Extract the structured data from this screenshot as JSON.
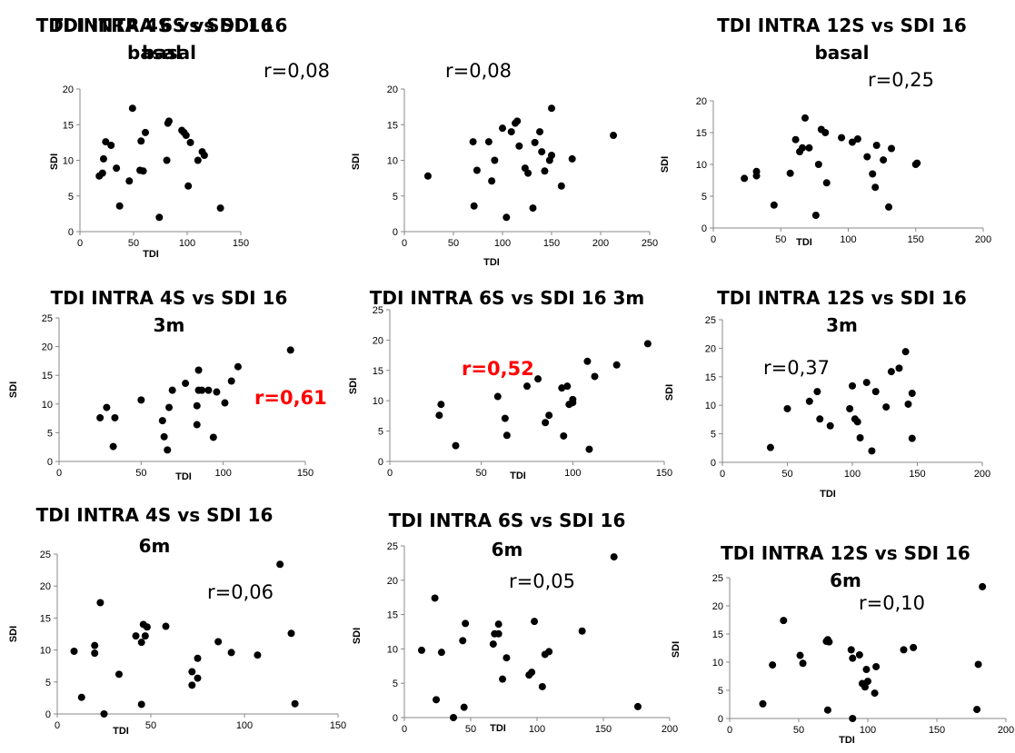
{
  "chart_data": [
    {
      "type": "scatter",
      "title_line1": "TDI INTRA 4S vs SDI 16",
      "title_line2": "basal",
      "xlabel": "TDI",
      "ylabel": "SDI",
      "annotation": "r=0,08",
      "annotation_highlight": false,
      "xlim": [
        0,
        150
      ],
      "ylim": [
        0,
        20
      ],
      "xticks": [
        "0",
        "50",
        "100",
        "150"
      ],
      "yticks": [
        "0",
        "5",
        "10",
        "15",
        "20"
      ],
      "x": [
        18,
        21,
        22,
        24,
        29,
        34,
        37,
        46,
        49,
        56,
        57,
        59,
        61,
        74,
        81,
        82,
        83,
        95,
        97,
        99,
        101,
        103,
        110,
        114,
        116,
        131
      ],
      "y": [
        7.8,
        8.2,
        10.2,
        12.6,
        12.1,
        8.9,
        3.6,
        7.1,
        17.3,
        8.6,
        12.7,
        8.5,
        13.9,
        2.0,
        10.0,
        15.2,
        15.5,
        14.2,
        13.9,
        13.5,
        6.4,
        12.5,
        10.0,
        11.2,
        10.7,
        3.3
      ]
    },
    {
      "type": "scatter",
      "title_line1": "TDI INTRA 6S vs SDI 16",
      "title_line2": "basal",
      "xlabel": "TDI",
      "ylabel": "SDI",
      "annotation": "r=0,08",
      "annotation_highlight": false,
      "xlim": [
        0,
        250
      ],
      "ylim": [
        0,
        20
      ],
      "xticks": [
        "0",
        "50",
        "100",
        "150",
        "200",
        "250"
      ],
      "yticks": [
        "0",
        "5",
        "10",
        "15",
        "20"
      ],
      "x": [
        24,
        70,
        71,
        74,
        86,
        89,
        92,
        100,
        104,
        109,
        113,
        115,
        117,
        123,
        126,
        131,
        133,
        138,
        140,
        143,
        148,
        150,
        150,
        160,
        171,
        213
      ],
      "y": [
        7.8,
        12.6,
        3.6,
        8.6,
        12.6,
        7.1,
        10.0,
        14.5,
        2.0,
        14.0,
        15.2,
        15.5,
        12.0,
        8.9,
        8.2,
        3.3,
        12.5,
        14.0,
        11.2,
        8.5,
        10.0,
        10.7,
        17.3,
        6.4,
        10.2,
        13.5
      ]
    },
    {
      "type": "scatter",
      "title_line1": "TDI INTRA 12S vs SDI 16",
      "title_line2": "basal",
      "xlabel": "TDI",
      "ylabel": "SDI",
      "annotation": "r=0,25",
      "annotation_highlight": false,
      "xlim": [
        0,
        200
      ],
      "ylim": [
        0,
        20
      ],
      "xticks": [
        "0",
        "50",
        "100",
        "150",
        "200"
      ],
      "yticks": [
        "0",
        "5",
        "10",
        "15",
        "20"
      ],
      "x": [
        23,
        32,
        32,
        45,
        57,
        61,
        64,
        66,
        68,
        71,
        76,
        78,
        80,
        83,
        84,
        95,
        103,
        107,
        114,
        118,
        120,
        121,
        126,
        130,
        132,
        150,
        151
      ],
      "y": [
        7.8,
        8.2,
        8.9,
        3.6,
        8.6,
        13.9,
        12.0,
        12.6,
        17.3,
        12.6,
        2.0,
        10.0,
        15.5,
        15.0,
        7.1,
        14.2,
        13.5,
        14.0,
        11.2,
        8.5,
        6.4,
        13.0,
        10.7,
        3.3,
        12.5,
        10.0,
        10.2
      ]
    },
    {
      "type": "scatter",
      "title_line1": "TDI INTRA 4S vs SDI 16",
      "title_line2": "3m",
      "xlabel": "TDI",
      "ylabel": "SDI",
      "annotation": "r=0,61",
      "annotation_highlight": true,
      "xlim": [
        0,
        150
      ],
      "ylim": [
        0,
        25
      ],
      "xticks": [
        "0",
        "50",
        "100",
        "150"
      ],
      "yticks": [
        "0",
        "5",
        "10",
        "15",
        "20",
        "25"
      ],
      "x": [
        25,
        29,
        33,
        34,
        50,
        63,
        64,
        66,
        67,
        69,
        77,
        84,
        84,
        85,
        85,
        87,
        91,
        94,
        96,
        101,
        105,
        109,
        141
      ],
      "y": [
        7.6,
        9.4,
        2.6,
        7.6,
        10.7,
        7.1,
        4.3,
        2.0,
        9.4,
        12.4,
        13.6,
        9.7,
        6.4,
        12.4,
        15.9,
        12.4,
        12.4,
        4.2,
        12.1,
        10.2,
        14.0,
        16.5,
        19.4
      ]
    },
    {
      "type": "scatter",
      "title_line1": "TDI INTRA 6S vs SDI 16 3m",
      "title_line2": "",
      "xlabel": "TDI",
      "ylabel": "SDI",
      "annotation": "r=0,52",
      "annotation_highlight": true,
      "xlim": [
        0,
        150
      ],
      "ylim": [
        0,
        25
      ],
      "xticks": [
        "0",
        "50",
        "100",
        "150"
      ],
      "yticks": [
        "0",
        "5",
        "10",
        "15",
        "20",
        "25"
      ],
      "x": [
        27,
        28,
        36,
        59,
        63,
        64,
        75,
        81,
        85,
        87,
        94,
        95,
        97,
        98,
        100,
        100,
        108,
        109,
        112,
        124,
        141
      ],
      "y": [
        7.6,
        9.4,
        2.6,
        10.7,
        7.1,
        4.3,
        12.4,
        13.6,
        6.4,
        7.6,
        12.1,
        4.2,
        12.4,
        9.4,
        9.7,
        10.2,
        16.5,
        2.0,
        14.0,
        15.9,
        19.4
      ]
    },
    {
      "type": "scatter",
      "title_line1": "TDI INTRA 12S vs SDI 16",
      "title_line2": "3m",
      "xlabel": "TDI",
      "ylabel": "SDI",
      "annotation": "r=0,37",
      "annotation_highlight": false,
      "xlim": [
        0,
        200
      ],
      "ylim": [
        0,
        25
      ],
      "xticks": [
        "0",
        "50",
        "100",
        "150",
        "200"
      ],
      "yticks": [
        "0",
        "5",
        "10",
        "15",
        "20",
        "25"
      ],
      "x": [
        37,
        50,
        67,
        73,
        75,
        83,
        98,
        100,
        102,
        104,
        106,
        111,
        115,
        118,
        126,
        130,
        136,
        141,
        143,
        146,
        146
      ],
      "y": [
        2.6,
        9.4,
        10.7,
        12.4,
        7.6,
        6.4,
        9.4,
        13.4,
        7.6,
        7.1,
        4.3,
        14.0,
        2.0,
        12.4,
        9.7,
        15.9,
        16.5,
        19.4,
        10.2,
        12.1,
        4.2
      ]
    },
    {
      "type": "scatter",
      "title_line1": "TDI INTRA 4S vs SDI 16",
      "title_line2": "6m",
      "xlabel": "TDI",
      "ylabel": "SDI",
      "annotation": "r=0,06",
      "annotation_highlight": false,
      "xlim": [
        0,
        150
      ],
      "ylim": [
        0,
        25
      ],
      "xticks": [
        "0",
        "50",
        "100",
        "150"
      ],
      "yticks": [
        "0",
        "5",
        "10",
        "15",
        "20",
        "25"
      ],
      "x": [
        9,
        13,
        20,
        20,
        23,
        25,
        33,
        42,
        45,
        45,
        46,
        47,
        48,
        58,
        72,
        72,
        75,
        75,
        86,
        93,
        107,
        119,
        125,
        127
      ],
      "y": [
        9.8,
        2.6,
        10.7,
        9.5,
        17.4,
        0.0,
        6.2,
        12.2,
        1.5,
        11.2,
        14.0,
        12.2,
        13.6,
        13.7,
        6.6,
        4.5,
        5.6,
        8.7,
        11.3,
        9.6,
        9.2,
        23.4,
        12.6,
        1.6
      ]
    },
    {
      "type": "scatter",
      "title_line1": "TDI INTRA 6S vs SDI 16",
      "title_line2": "6m",
      "xlabel": "TDI",
      "ylabel": "SDI",
      "annotation": "r=0,05",
      "annotation_highlight": false,
      "xlim": [
        0,
        200
      ],
      "ylim": [
        0,
        25
      ],
      "xticks": [
        "0",
        "50",
        "100",
        "150",
        "200"
      ],
      "yticks": [
        "0",
        "5",
        "10",
        "15",
        "20",
        "25"
      ],
      "x": [
        13,
        23,
        24,
        28,
        37,
        44,
        45,
        46,
        67,
        68,
        71,
        71,
        74,
        77,
        94,
        96,
        98,
        104,
        106,
        109,
        134,
        158,
        176
      ],
      "y": [
        9.8,
        17.4,
        2.6,
        9.5,
        0.0,
        11.2,
        1.5,
        13.7,
        10.7,
        12.2,
        12.2,
        13.6,
        5.6,
        8.7,
        6.2,
        6.6,
        14.0,
        4.5,
        9.2,
        9.6,
        12.6,
        23.4,
        1.6
      ]
    },
    {
      "type": "scatter",
      "title_line1": "TDI INTRA 12S vs SDI 16",
      "title_line2": "6m",
      "xlabel": "TDI",
      "ylabel": "SDI",
      "annotation": "r=0,10",
      "annotation_highlight": false,
      "xlim": [
        0,
        200
      ],
      "ylim": [
        0,
        25
      ],
      "xticks": [
        "0",
        "50",
        "100",
        "150",
        "200"
      ],
      "yticks": [
        "0",
        "5",
        "10",
        "15",
        "20",
        "25"
      ],
      "x": [
        24,
        31,
        39,
        51,
        53,
        70,
        71,
        71,
        72,
        88,
        89,
        89,
        94,
        96,
        98,
        99,
        100,
        105,
        106,
        126,
        133,
        179,
        180,
        183
      ],
      "y": [
        2.6,
        9.5,
        17.4,
        11.2,
        9.8,
        13.7,
        1.5,
        14.0,
        13.6,
        12.2,
        10.7,
        0.0,
        11.3,
        6.2,
        5.6,
        8.7,
        6.6,
        4.5,
        9.2,
        12.2,
        12.6,
        1.6,
        9.6,
        23.4
      ]
    }
  ]
}
